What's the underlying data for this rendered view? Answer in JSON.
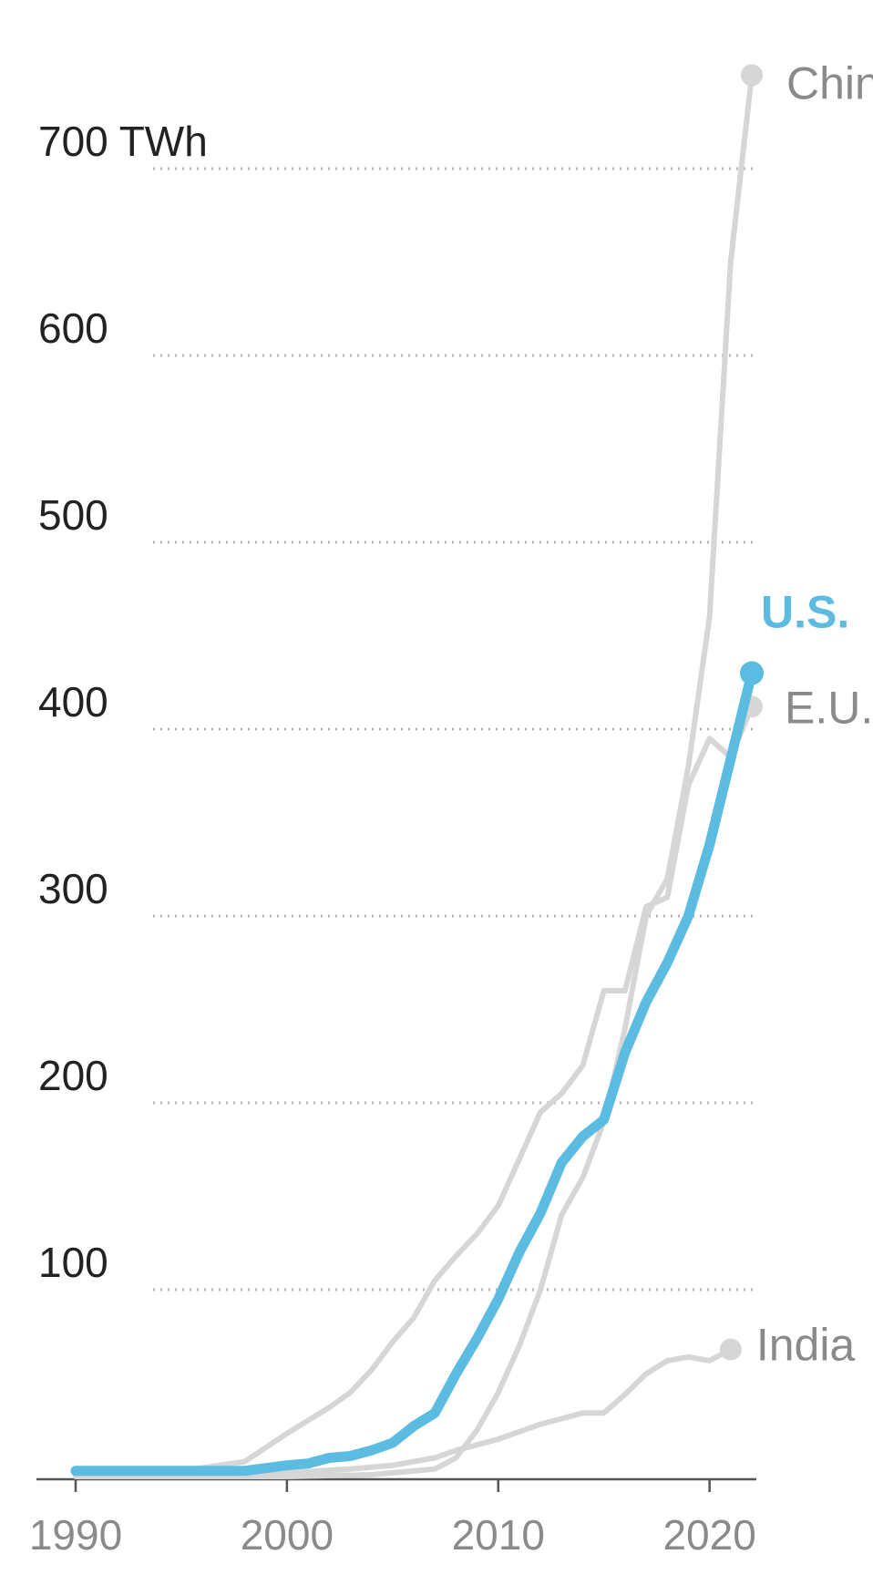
{
  "chart_data": {
    "type": "line",
    "title": "",
    "xlabel": "",
    "ylabel": "",
    "y_unit": "TWh",
    "xlim": [
      1990,
      2024
    ],
    "ylim": [
      0,
      750
    ],
    "x_ticks": [
      {
        "value": 1990,
        "label": "1990"
      },
      {
        "value": 2000,
        "label": "2000"
      },
      {
        "value": 2010,
        "label": "2010"
      },
      {
        "value": 2020,
        "label": "2020"
      }
    ],
    "y_ticks": [
      {
        "value": 100,
        "label": "100"
      },
      {
        "value": 200,
        "label": "200"
      },
      {
        "value": 300,
        "label": "300"
      },
      {
        "value": 400,
        "label": "400"
      },
      {
        "value": 500,
        "label": "500"
      },
      {
        "value": 600,
        "label": "600"
      },
      {
        "value": 700,
        "label": "700 TWh"
      }
    ],
    "grid": true,
    "legend": "direct labels at line ends",
    "highlight_color": "#5bbbe0",
    "context_color": "#d6d6d6",
    "series": [
      {
        "name": "China",
        "color": "#d6d6d6",
        "highlight": false,
        "label_color": "#8a8a8a",
        "points": [
          [
            1990,
            0
          ],
          [
            1996,
            0
          ],
          [
            2000,
            0
          ],
          [
            2004,
            1
          ],
          [
            2007,
            4
          ],
          [
            2008,
            10
          ],
          [
            2009,
            25
          ],
          [
            2010,
            45
          ],
          [
            2011,
            70
          ],
          [
            2012,
            100
          ],
          [
            2013,
            140
          ],
          [
            2014,
            160
          ],
          [
            2015,
            190
          ],
          [
            2016,
            240
          ],
          [
            2017,
            300
          ],
          [
            2018,
            320
          ],
          [
            2019,
            380
          ],
          [
            2020,
            460
          ],
          [
            2021,
            650
          ],
          [
            2022,
            750
          ]
        ]
      },
      {
        "name": "E.U.",
        "color": "#d6d6d6",
        "highlight": false,
        "label_color": "#8a8a8a",
        "points": [
          [
            1990,
            1
          ],
          [
            1995,
            3
          ],
          [
            1998,
            8
          ],
          [
            2000,
            23
          ],
          [
            2002,
            37
          ],
          [
            2003,
            45
          ],
          [
            2004,
            57
          ],
          [
            2005,
            72
          ],
          [
            2006,
            85
          ],
          [
            2007,
            105
          ],
          [
            2008,
            118
          ],
          [
            2009,
            130
          ],
          [
            2010,
            145
          ],
          [
            2011,
            170
          ],
          [
            2012,
            195
          ],
          [
            2013,
            205
          ],
          [
            2014,
            220
          ],
          [
            2015,
            260
          ],
          [
            2016,
            260
          ],
          [
            2017,
            305
          ],
          [
            2018,
            310
          ],
          [
            2019,
            370
          ],
          [
            2020,
            395
          ],
          [
            2021,
            385
          ],
          [
            2022,
            412
          ]
        ]
      },
      {
        "name": "India",
        "color": "#d6d6d6",
        "highlight": false,
        "label_color": "#8a8a8a",
        "points": [
          [
            1990,
            0
          ],
          [
            1996,
            1
          ],
          [
            2000,
            2
          ],
          [
            2003,
            4
          ],
          [
            2005,
            6
          ],
          [
            2007,
            10
          ],
          [
            2008,
            14
          ],
          [
            2009,
            17
          ],
          [
            2010,
            20
          ],
          [
            2011,
            24
          ],
          [
            2012,
            28
          ],
          [
            2013,
            31
          ],
          [
            2014,
            34
          ],
          [
            2015,
            34
          ],
          [
            2016,
            44
          ],
          [
            2017,
            55
          ],
          [
            2018,
            62
          ],
          [
            2019,
            64
          ],
          [
            2020,
            62
          ],
          [
            2021,
            68
          ]
        ]
      },
      {
        "name": "U.S.",
        "color": "#5bbbe0",
        "highlight": true,
        "label_color": "#5bbbe0",
        "points": [
          [
            1990,
            3
          ],
          [
            1995,
            3
          ],
          [
            1998,
            3
          ],
          [
            2000,
            6
          ],
          [
            2001,
            7
          ],
          [
            2002,
            10
          ],
          [
            2003,
            11
          ],
          [
            2004,
            14
          ],
          [
            2005,
            18
          ],
          [
            2006,
            27
          ],
          [
            2007,
            34
          ],
          [
            2008,
            55
          ],
          [
            2009,
            74
          ],
          [
            2010,
            95
          ],
          [
            2011,
            120
          ],
          [
            2012,
            141
          ],
          [
            2013,
            168
          ],
          [
            2014,
            182
          ],
          [
            2015,
            191
          ],
          [
            2016,
            227
          ],
          [
            2017,
            254
          ],
          [
            2018,
            275
          ],
          [
            2019,
            300
          ],
          [
            2020,
            338
          ],
          [
            2021,
            384
          ],
          [
            2022,
            430
          ]
        ]
      }
    ]
  }
}
